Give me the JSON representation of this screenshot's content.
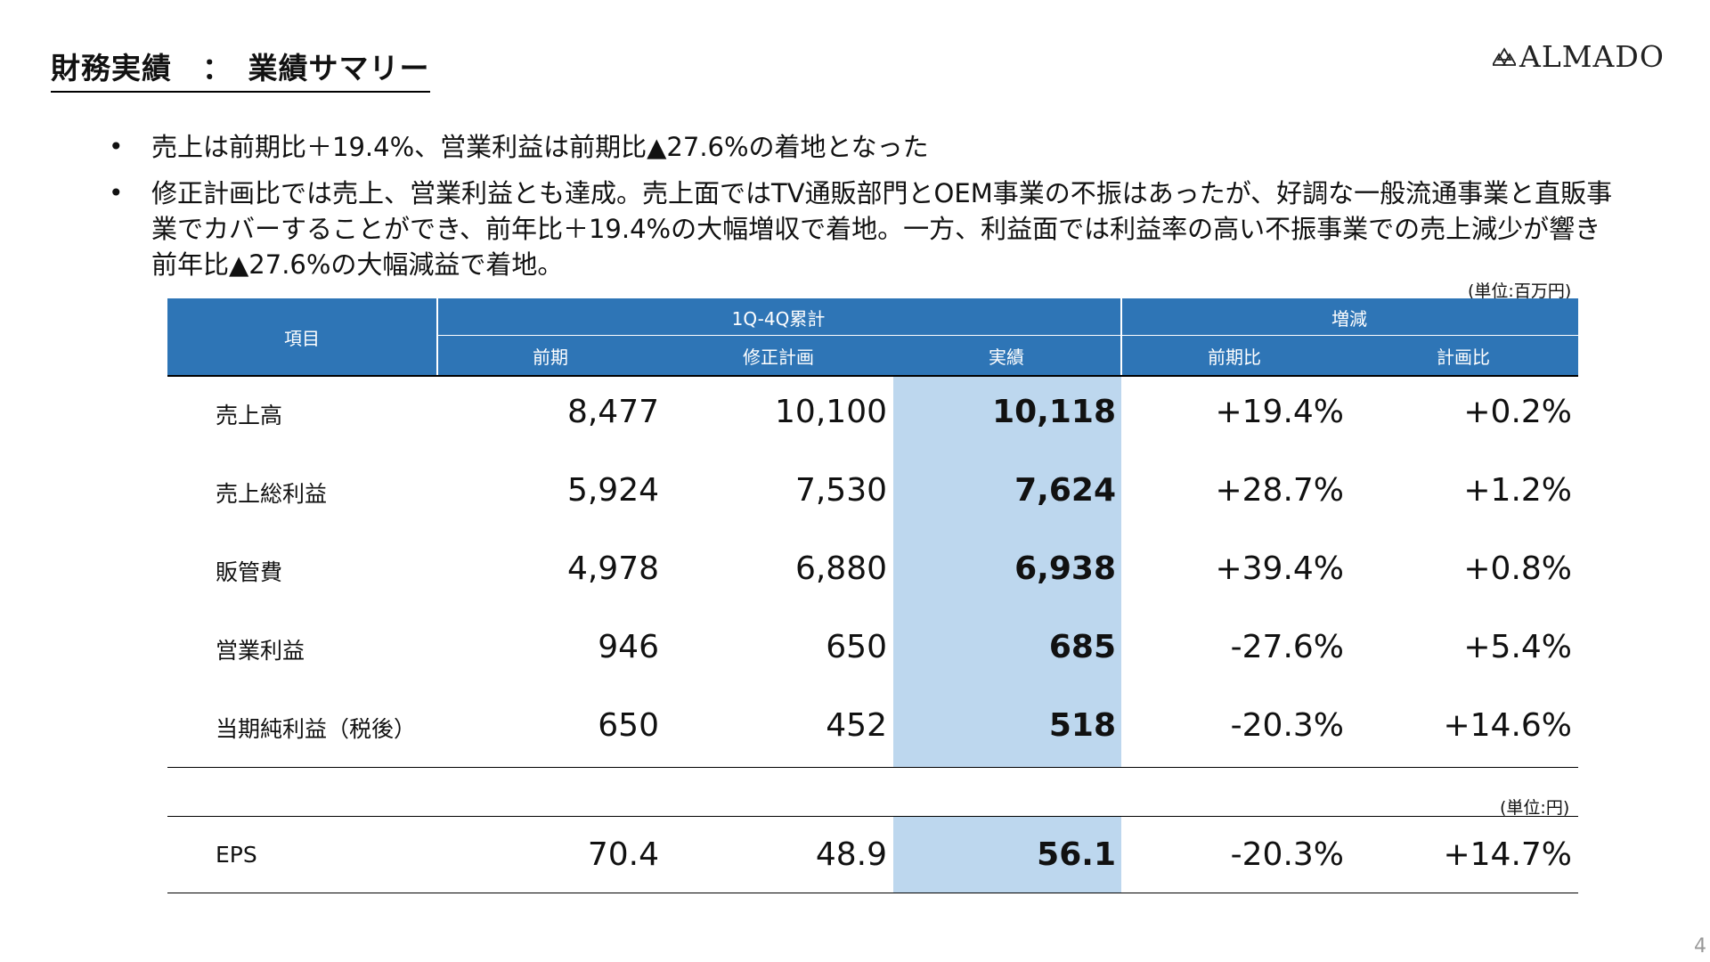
{
  "header": {
    "title": "財務実績　：　業績サマリー",
    "logo_text": "ALMADO"
  },
  "bullets": [
    "売上は前期比＋19.4%、営業利益は前期比▲27.6%の着地となった",
    "修正計画比では売上、営業利益とも達成。売上面ではTV通販部門とOEM事業の不振はあったが、好調な一般流通事業と直販事業でカバーすることができ、前年比＋19.4%の大幅増収で着地。一方、利益面では利益率の高い不振事業での売上減少が響き前年比▲27.6%の大幅減益で着地。"
  ],
  "table": {
    "unit_main": "(単位:百万円)",
    "unit_eps": "(単位:円)",
    "header": {
      "item": "項目",
      "group1": "1Q-4Q累計",
      "group2": "増減",
      "prev": "前期",
      "revised_plan": "修正計画",
      "actual": "実績",
      "vs_prev": "前期比",
      "vs_plan": "計画比"
    },
    "rows": [
      {
        "label": "売上高",
        "prev": "8,477",
        "plan": "10,100",
        "actual": "10,118",
        "vs_prev": "+19.4%",
        "vs_plan": "+0.2%"
      },
      {
        "label": "売上総利益",
        "prev": "5,924",
        "plan": "7,530",
        "actual": "7,624",
        "vs_prev": "+28.7%",
        "vs_plan": "+1.2%"
      },
      {
        "label": "販管費",
        "prev": "4,978",
        "plan": "6,880",
        "actual": "6,938",
        "vs_prev": "+39.4%",
        "vs_plan": "+0.8%"
      },
      {
        "label": "営業利益",
        "prev": "946",
        "plan": "650",
        "actual": "685",
        "vs_prev": "-27.6%",
        "vs_plan": "+5.4%"
      },
      {
        "label": "当期純利益（税後）",
        "prev": "650",
        "plan": "452",
        "actual": "518",
        "vs_prev": "-20.3%",
        "vs_plan": "+14.6%"
      }
    ],
    "eps": {
      "label": "EPS",
      "prev": "70.4",
      "plan": "48.9",
      "actual": "56.1",
      "vs_prev": "-20.3%",
      "vs_plan": "+14.7%"
    }
  },
  "page_number": "4",
  "colors": {
    "header_blue": "#2e75b6",
    "highlight": "#bdd7ee"
  }
}
